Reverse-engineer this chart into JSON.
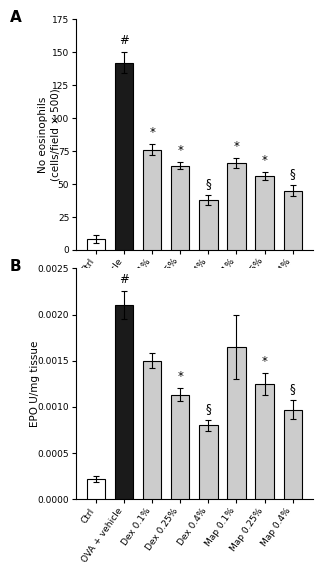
{
  "categories": [
    "Ctrl",
    "OVA + vehicle",
    "Dex 0.1%",
    "Dex 0.25%",
    "Dex 0.4%",
    "Map 0.1%",
    "Map 0.25%",
    "Map 0.4%"
  ],
  "panel_A": {
    "values": [
      8,
      142,
      76,
      64,
      38,
      66,
      56,
      45
    ],
    "errors": [
      3,
      8,
      4,
      3,
      4,
      4,
      3,
      4
    ],
    "ylim": [
      0,
      175
    ],
    "yticks": [
      0,
      25,
      50,
      75,
      100,
      125,
      150,
      175
    ],
    "ylabel": "No eosinophils\n(cells/field × 500)",
    "bar_colors": [
      "white",
      "#1a1a1a",
      "#cccccc",
      "#cccccc",
      "#cccccc",
      "#cccccc",
      "#cccccc",
      "#cccccc"
    ],
    "bar_edgecolors": [
      "black",
      "black",
      "black",
      "black",
      "black",
      "black",
      "black",
      "black"
    ],
    "annotations": [
      "",
      "#",
      "*",
      "*",
      "§",
      "*",
      "*",
      "§"
    ],
    "panel_label": "A"
  },
  "panel_B": {
    "values": [
      0.00022,
      0.0021,
      0.0015,
      0.00113,
      0.0008,
      0.00165,
      0.00125,
      0.00097
    ],
    "errors": [
      3e-05,
      0.00015,
      8e-05,
      7e-05,
      6e-05,
      0.00035,
      0.00012,
      0.0001
    ],
    "ylim": [
      0,
      0.0025
    ],
    "yticks": [
      0.0,
      0.0005,
      0.001,
      0.0015,
      0.002,
      0.0025
    ],
    "ylabel": "EPO U/mg tissue",
    "bar_colors": [
      "white",
      "#1a1a1a",
      "#cccccc",
      "#cccccc",
      "#cccccc",
      "#cccccc",
      "#cccccc",
      "#cccccc"
    ],
    "bar_edgecolors": [
      "black",
      "black",
      "black",
      "black",
      "black",
      "black",
      "black",
      "black"
    ],
    "annotations": [
      "",
      "#",
      "",
      "*",
      "§",
      "",
      "*",
      "§"
    ],
    "panel_label": "B"
  },
  "figure_background": "white",
  "bar_width": 0.65,
  "tick_fontsize": 6.5,
  "label_fontsize": 7.5,
  "annot_fontsize": 8.5
}
